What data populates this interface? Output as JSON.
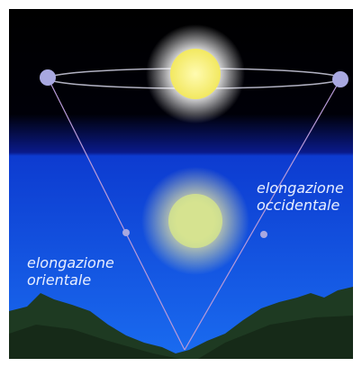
{
  "labels": [
    {
      "lines": [
        "elongazione",
        "occidentale"
      ]
    },
    {
      "lines": [
        "elongazione",
        "orientale"
      ]
    }
  ]
}
